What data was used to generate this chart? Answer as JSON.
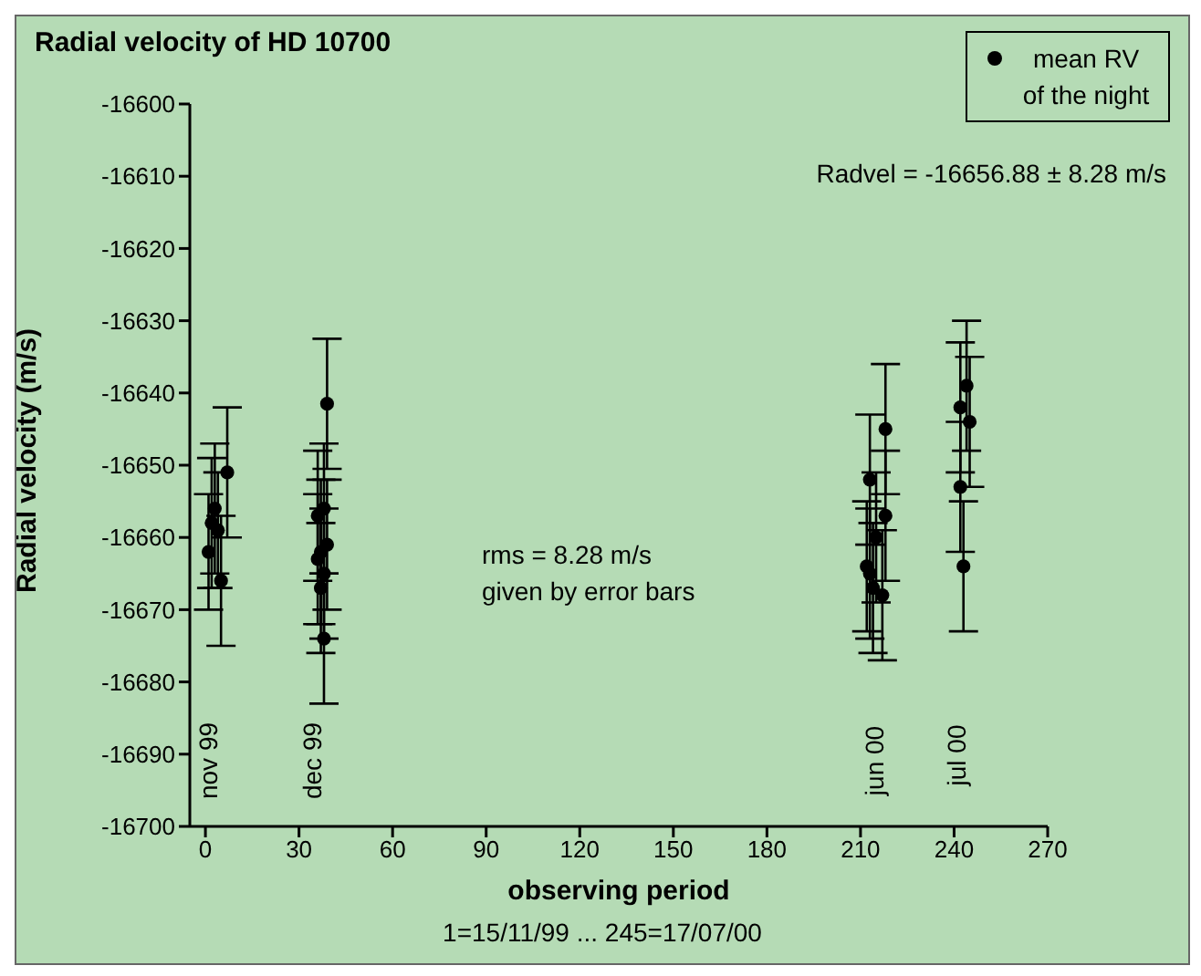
{
  "chart_data": {
    "type": "scatter",
    "title": "Radial velocity of HD 10700",
    "xlabel": "observing period",
    "ylabel": "Radial velocity (m/s)",
    "annotations": [
      "Radvel = -16656.88 ± 8.28 m/s",
      "rms = 8.28 m/s\ngiven by error bars",
      "1=15/11/99 ... 245=17/07/00",
      "nov 99",
      "dec 99",
      "jun 00",
      "jul 00"
    ],
    "series": [
      {
        "name": "mean RV of the night",
        "color": "#000000",
        "x": [
          1,
          2,
          3,
          4,
          5,
          7,
          36,
          36,
          37,
          37,
          38,
          38,
          38,
          39,
          39,
          212,
          213,
          213,
          214,
          215,
          217,
          218,
          218,
          242,
          242,
          243,
          244,
          245
        ],
        "values": [
          -16662,
          -16658,
          -16656,
          -16659,
          -16666,
          -16651,
          -16657,
          -16663,
          -16662,
          -16667,
          -16656,
          -16665,
          -16674,
          -16641.5,
          -16661,
          -16664,
          -16652,
          -16665,
          -16667,
          -16660,
          -16668,
          -16645,
          -16657,
          -16642,
          -16653,
          -16664,
          -16639,
          -16644
        ],
        "errors": [
          8,
          9,
          9,
          8,
          9,
          9,
          9,
          9,
          10,
          9,
          9,
          9,
          9,
          9,
          9,
          9,
          9,
          9,
          9,
          9,
          9,
          9,
          9,
          9,
          9,
          9,
          9,
          9
        ]
      }
    ],
    "xlim": [
      -5,
      270
    ],
    "xticks": [
      0,
      30,
      60,
      90,
      120,
      150,
      180,
      210,
      240,
      270
    ],
    "ylim": [
      -16700,
      -16600
    ],
    "yticks": [
      -16700,
      -16690,
      -16680,
      -16670,
      -16660,
      -16650,
      -16640,
      -16630,
      -16620,
      -16610,
      -16600
    ],
    "grid": false,
    "legend": "top right",
    "marker": "circle"
  }
}
